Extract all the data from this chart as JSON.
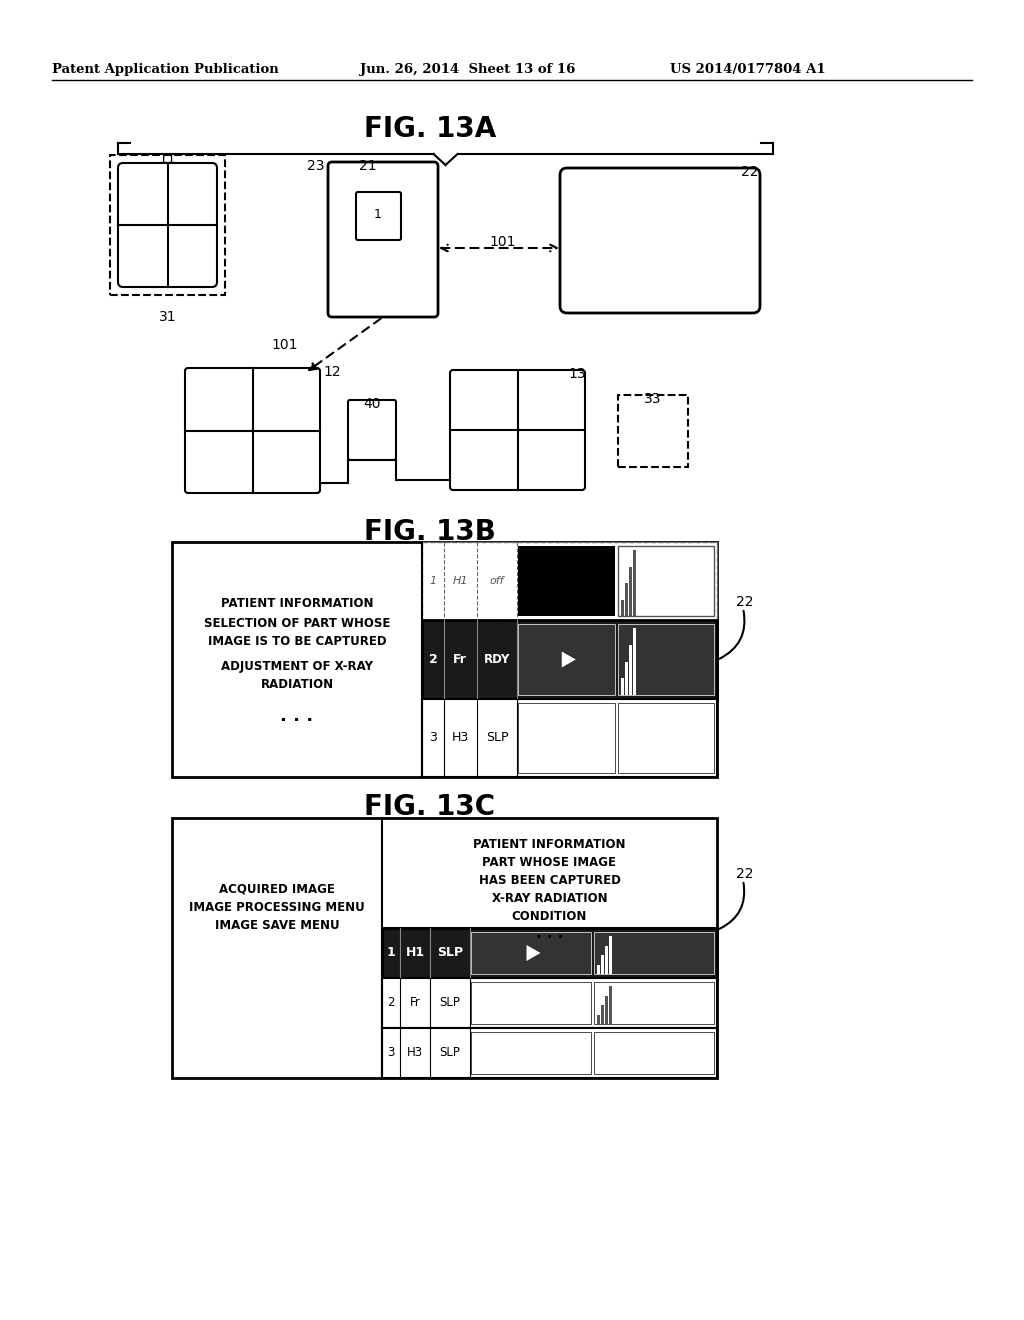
{
  "header_left": "Patent Application Publication",
  "header_mid": "Jun. 26, 2014  Sheet 13 of 16",
  "header_right": "US 2014/0177804 A1",
  "fig13a_title": "FIG. 13A",
  "fig13b_title": "FIG. 13B",
  "fig13c_title": "FIG. 13C",
  "bg_color": "#ffffff"
}
